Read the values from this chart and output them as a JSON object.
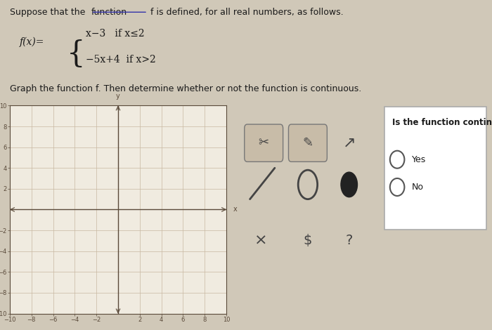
{
  "title_line1": "Suppose that the ",
  "title_underline": "function",
  "title_line1_rest": " f is defined, for all real numbers, as follows.",
  "piece1_left": "x-3",
  "piece1_cond": "if x≤2",
  "piece2_left": "-5x+4",
  "piece2_cond": "if x>2",
  "fx_label": "f(x)=",
  "graph_instruction": "Graph the function f. Then determine whether or not the function is continuous.",
  "question": "Is the function continuous?",
  "yes_label": "Yes",
  "no_label": "No",
  "xlim": [
    -10,
    10
  ],
  "ylim": [
    -10,
    10
  ],
  "xticks": [
    -10,
    -8,
    -6,
    -4,
    -2,
    2,
    4,
    6,
    8,
    10
  ],
  "yticks": [
    -10,
    -8,
    -6,
    -4,
    -2,
    2,
    4,
    6,
    8,
    10
  ],
  "grid_color": "#c8b8a2",
  "axis_color": "#5a4a3a",
  "bg_color": "#f0ebe0",
  "panel_bg": "#ddd8cc",
  "text_color": "#1a1a1a",
  "outer_bg": "#d0c8b8"
}
